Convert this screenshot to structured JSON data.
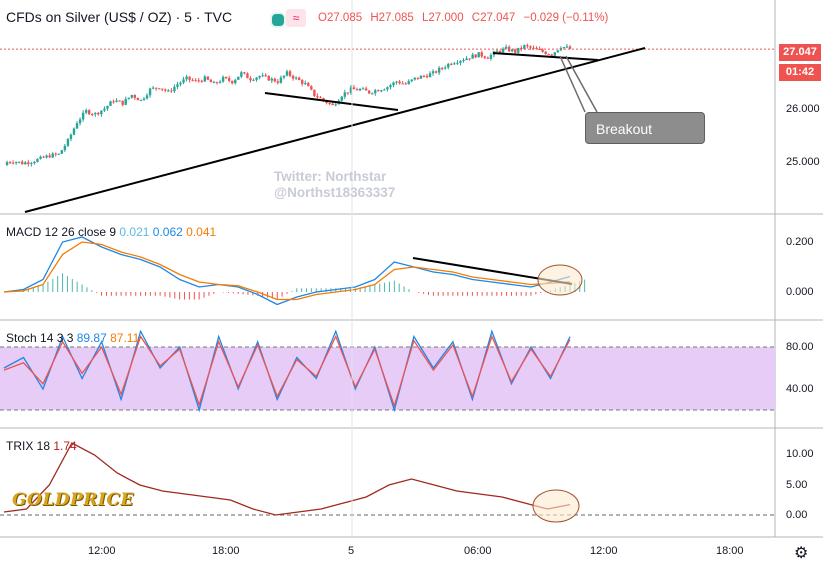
{
  "header": {
    "title": "CFDs on Silver (US$ / OZ) · 5 · TVC",
    "open": "O27.085",
    "high": "H27.085",
    "low": "L27.000",
    "close": "C27.047",
    "change": "−0.029 (−0.11%)"
  },
  "price_tag": "27.047",
  "countdown": "01:42",
  "watermark": {
    "line1": "Twitter: Northstar",
    "line2": "@Northst18363337"
  },
  "annotation": {
    "breakout": "Breakout"
  },
  "logo": {
    "text": "GOLDPRICE"
  },
  "macd_label": {
    "name": "MACD 12 26 close 9",
    "hist": "0.021",
    "macd": "0.062",
    "signal": "0.041"
  },
  "stoch_label": {
    "name": "Stoch 14 3 3",
    "k": "89.87",
    "d": "87.11"
  },
  "trix_label": {
    "name": "TRIX 18",
    "value": "1.74"
  },
  "colors": {
    "up": "#26a69a",
    "down": "#ef5350",
    "macd": "#1e88e5",
    "signal": "#f57c00",
    "stoch_band": "#e6ccf7",
    "trix": "#a0291f"
  },
  "chart_data": [
    {
      "type": "candlestick",
      "pane": "price",
      "title": "CFDs on Silver (US$ / OZ) · 5 · TVC",
      "x_ticks": [
        "12:00",
        "18:00",
        "5",
        "06:00",
        "12:00",
        "18:00"
      ],
      "y_ticks": [
        "26.000",
        "25.000"
      ],
      "ylim": [
        24.0,
        27.4
      ],
      "close_path": [
        24.95,
        24.98,
        24.94,
        24.97,
        25.02,
        25.08,
        25.1,
        25.35,
        25.7,
        25.9,
        25.85,
        25.95,
        26.1,
        26.05,
        26.2,
        26.1,
        26.3,
        26.35,
        26.25,
        26.4,
        26.5,
        26.45,
        26.5,
        26.4,
        26.5,
        26.45,
        26.6,
        26.5,
        26.55,
        26.5,
        26.45,
        26.6,
        26.5,
        26.4,
        26.2,
        26.1,
        26.0,
        26.2,
        26.3,
        26.3,
        26.25,
        26.3,
        26.35,
        26.45,
        26.4,
        26.5,
        26.55,
        26.6,
        26.7,
        26.8,
        26.85,
        26.9,
        26.95,
        26.9,
        27.0,
        27.05,
        27.0,
        27.1,
        27.05,
        27.0,
        26.95,
        27.1,
        27.05
      ],
      "current_price": 27.047,
      "trendlines": [
        {
          "from": [
            "start",
            24.0
          ],
          "to": [
            "after 12:00 day 2",
            27.2
          ]
        },
        {
          "from": [
            "19:00",
            26.65
          ],
          "to": [
            "02:00",
            26.25
          ]
        },
        {
          "from": [
            "06:30",
            27.2
          ],
          "to": [
            "10:30",
            27.05
          ]
        }
      ]
    },
    {
      "type": "line",
      "pane": "MACD",
      "y_ticks": [
        "0.200",
        "0.000"
      ],
      "series": [
        {
          "name": "MACD",
          "values": [
            0.0,
            0.01,
            0.05,
            0.2,
            0.22,
            0.18,
            0.15,
            0.13,
            0.1,
            0.05,
            0.02,
            0.03,
            0.02,
            -0.01,
            -0.05,
            -0.02,
            0.0,
            0.01,
            0.02,
            0.05,
            0.12,
            0.1,
            0.08,
            0.07,
            0.05,
            0.04,
            0.03,
            0.02,
            0.04,
            0.062
          ]
        },
        {
          "name": "signal",
          "values": [
            0.0,
            0.005,
            0.03,
            0.15,
            0.2,
            0.19,
            0.16,
            0.14,
            0.11,
            0.07,
            0.04,
            0.03,
            0.025,
            0.0,
            -0.03,
            -0.03,
            -0.01,
            0.0,
            0.01,
            0.03,
            0.09,
            0.1,
            0.09,
            0.08,
            0.06,
            0.05,
            0.04,
            0.03,
            0.035,
            0.041
          ]
        }
      ]
    },
    {
      "type": "line",
      "pane": "Stochastic",
      "y_ticks": [
        "80.00",
        "40.00"
      ],
      "band": [
        20,
        80
      ],
      "series": [
        {
          "name": "%K",
          "values": [
            60,
            70,
            40,
            90,
            50,
            85,
            30,
            95,
            60,
            80,
            20,
            90,
            40,
            85,
            30,
            70,
            50,
            95,
            40,
            80,
            20,
            90,
            60,
            85,
            30,
            95,
            45,
            80,
            50,
            89.87
          ]
        },
        {
          "name": "%D",
          "values": [
            58,
            65,
            45,
            85,
            55,
            80,
            35,
            90,
            62,
            78,
            25,
            85,
            42,
            82,
            33,
            68,
            52,
            90,
            42,
            78,
            24,
            86,
            58,
            82,
            33,
            90,
            47,
            78,
            52,
            87.11
          ]
        }
      ]
    },
    {
      "type": "line",
      "pane": "TRIX",
      "y_ticks": [
        "10.00",
        "5.00",
        "0.00"
      ],
      "series": [
        {
          "name": "TRIX 18",
          "values": [
            0.5,
            1,
            5,
            12,
            10,
            7,
            5,
            4,
            3.5,
            3,
            2.5,
            1,
            0,
            0.5,
            1,
            2,
            3,
            5,
            6,
            5,
            4,
            3.5,
            3,
            2,
            1,
            1.74
          ]
        }
      ]
    }
  ]
}
